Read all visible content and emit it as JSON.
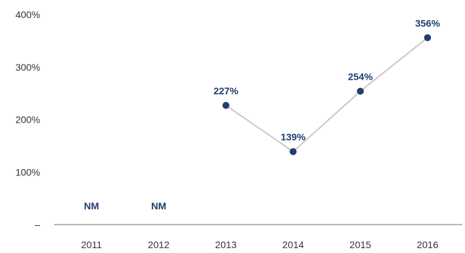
{
  "chart_data": {
    "type": "line",
    "categories": [
      "2011",
      "2012",
      "2013",
      "2014",
      "2015",
      "2016"
    ],
    "series": [
      {
        "values": [
          null,
          null,
          227,
          139,
          254,
          356
        ],
        "data_labels": [
          "NM",
          "NM",
          "227%",
          "139%",
          "254%",
          "356%"
        ]
      }
    ],
    "y_ticks": [
      {
        "value": 0,
        "label": "–"
      },
      {
        "value": 100,
        "label": "100%"
      },
      {
        "value": 200,
        "label": "200%"
      },
      {
        "value": 300,
        "label": "300%"
      },
      {
        "value": 400,
        "label": "400%"
      }
    ],
    "ylim": [
      0,
      400
    ],
    "title": "",
    "xlabel": "",
    "ylabel": "",
    "grid": false,
    "legend": "none",
    "colors": {
      "marker": "#1f3f6e",
      "line": "#c9c9c9",
      "data_label": "#1f3f6e",
      "axis": "#8c8c8c",
      "tick_text": "#333333"
    }
  }
}
